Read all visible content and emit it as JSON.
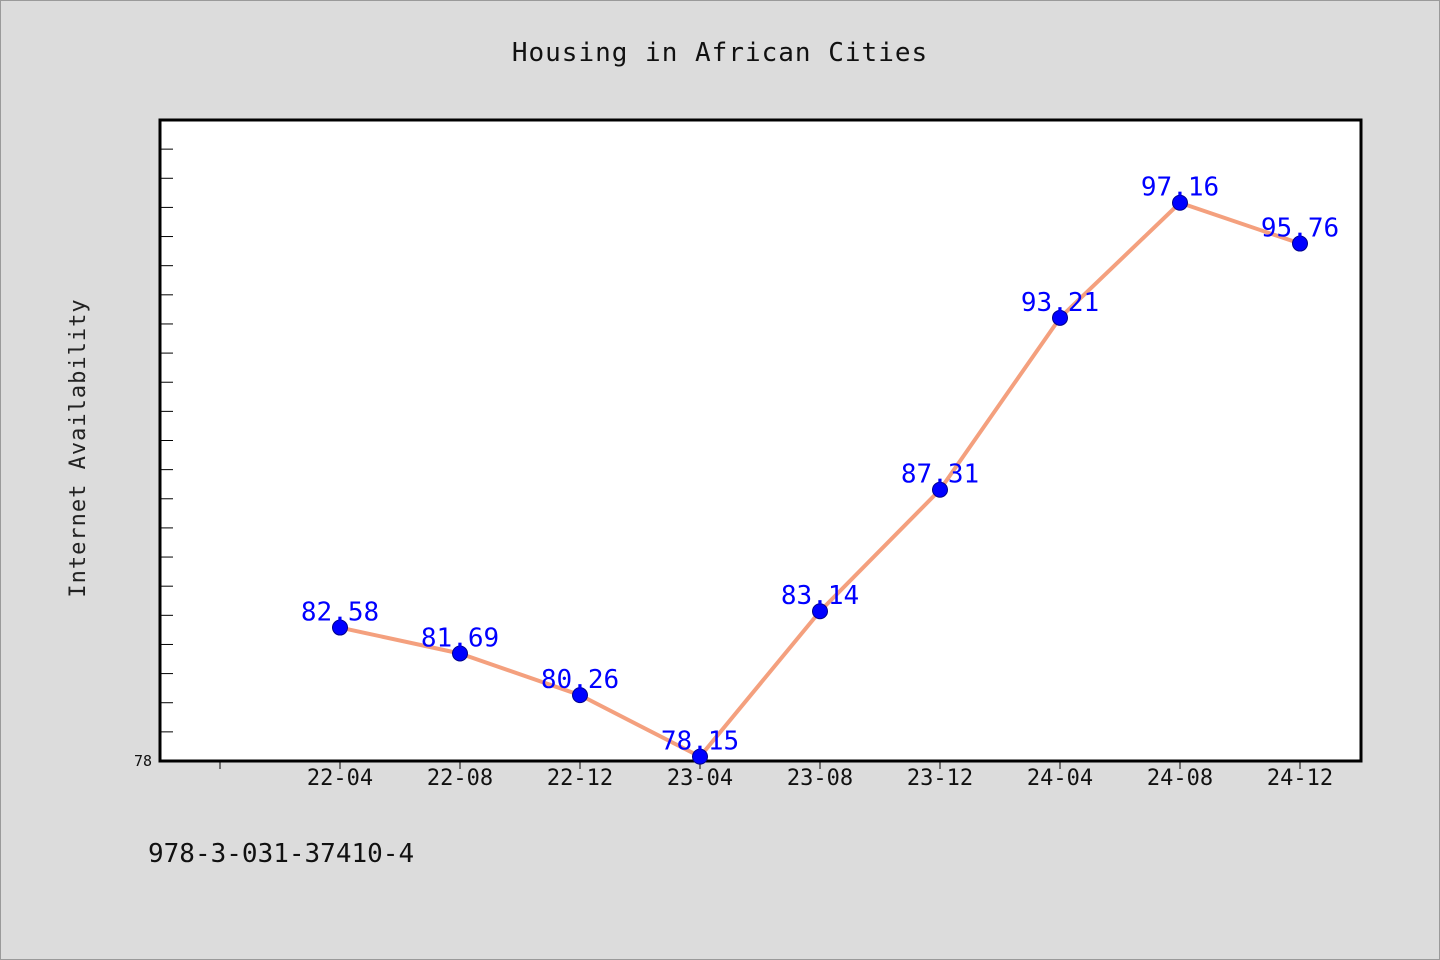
{
  "chart_data": {
    "type": "line",
    "title": "Housing in African Cities",
    "xlabel": "",
    "ylabel": "Internet Availability",
    "categories": [
      "22-04",
      "22-08",
      "22-12",
      "23-04",
      "23-08",
      "23-12",
      "24-04",
      "24-08",
      "24-12"
    ],
    "series": [
      {
        "values": [
          82.58,
          81.69,
          80.26,
          78.15,
          83.14,
          87.31,
          93.21,
          97.16,
          95.76
        ],
        "line_color": "#f4a07e",
        "marker_color": "#0000ff"
      }
    ],
    "data_labels": [
      "82.58",
      "81.69",
      "80.26",
      "78.15",
      "83.14",
      "87.31",
      "93.21",
      "97.16",
      "95.76"
    ],
    "ylim": [
      78,
      100
    ],
    "yticks_labeled": [
      "78"
    ],
    "grid": false,
    "legend": "none"
  },
  "footer": {
    "code": "978-3-031-37410-4"
  }
}
